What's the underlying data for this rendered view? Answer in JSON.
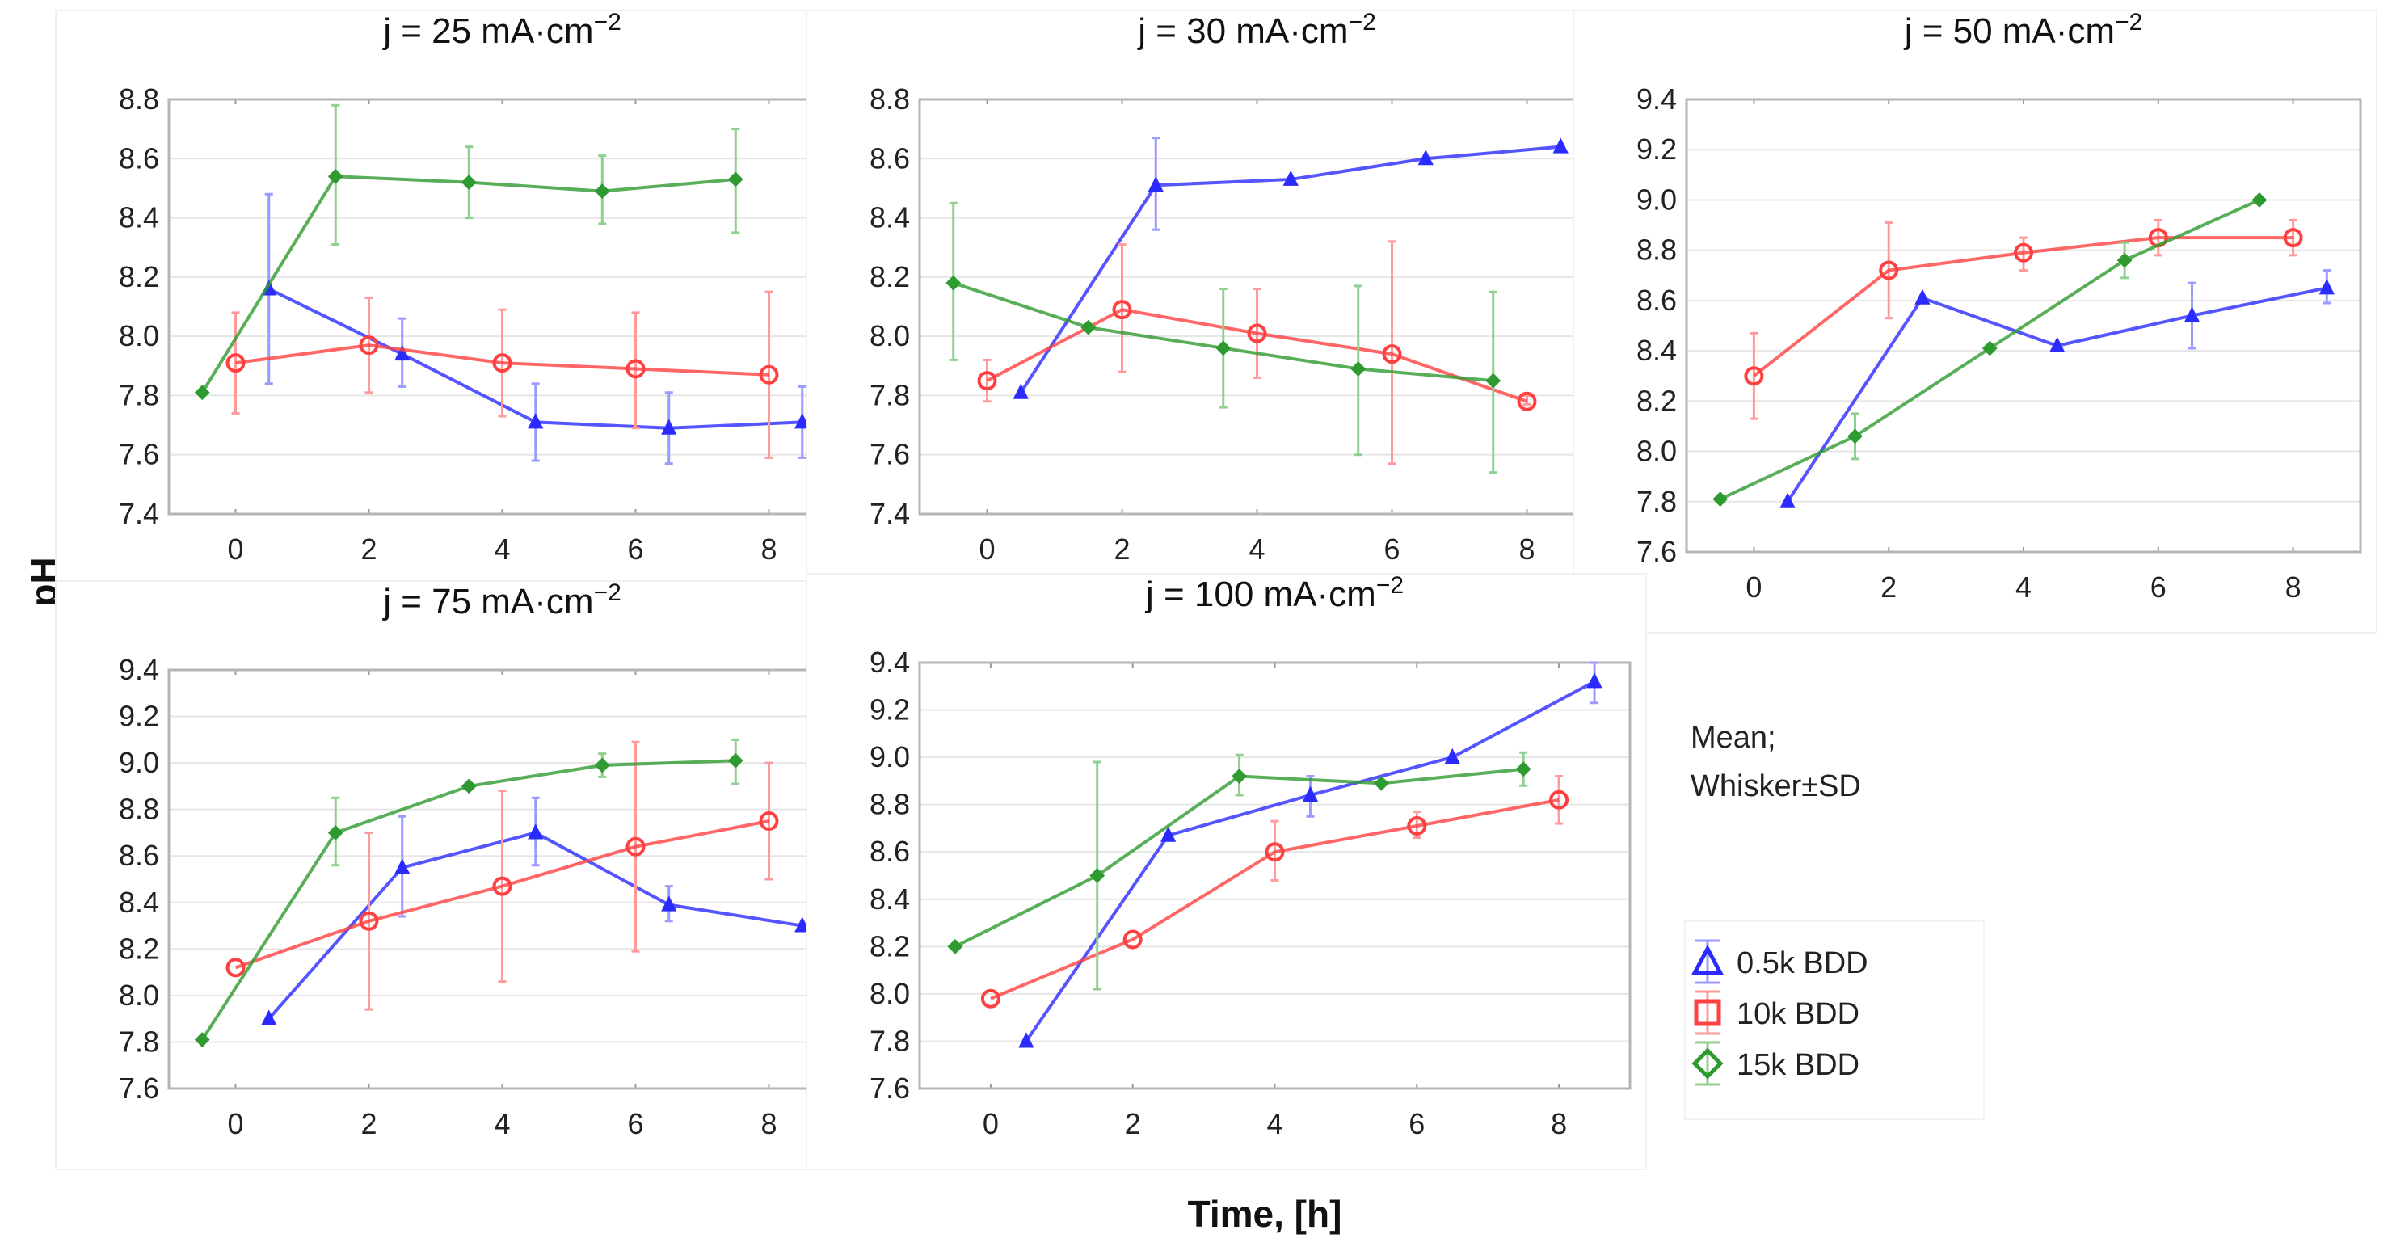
{
  "figure": {
    "ylabel": "pH",
    "xlabel": "Time, [h]",
    "note_line1": "Mean;",
    "note_line2": "Whisker±SD",
    "legend": [
      {
        "name": "0.5k BDD",
        "color": "#2b2bff",
        "marker": "triangle"
      },
      {
        "name": "10k BDD",
        "color": "#ff4040",
        "marker": "square"
      },
      {
        "name": "15k BDD",
        "color": "#2f9a2f",
        "marker": "diamond"
      }
    ]
  },
  "chart_data": [
    {
      "type": "line",
      "title_main": "j = 25 mA·cm",
      "title_sup": "−2",
      "xlim": [
        -1,
        9
      ],
      "ylim": [
        7.4,
        8.8
      ],
      "xticks": [
        "0",
        "2",
        "4",
        "6",
        "8"
      ],
      "yticks": [
        "7.4",
        "7.6",
        "7.8",
        "8.0",
        "8.2",
        "8.4",
        "8.6",
        "8.8"
      ],
      "grid": true,
      "series": [
        {
          "name": "0.5k BDD",
          "x": [
            0.5,
            2.5,
            4.5,
            6.5,
            8.5
          ],
          "y": [
            8.16,
            7.94,
            7.71,
            7.69,
            7.71
          ],
          "err": [
            [
              7.84,
              8.48
            ],
            [
              7.83,
              8.06
            ],
            [
              7.58,
              7.84
            ],
            [
              7.57,
              7.81
            ],
            [
              7.59,
              7.83
            ]
          ]
        },
        {
          "name": "10k BDD",
          "x": [
            0,
            2,
            4,
            6,
            8
          ],
          "y": [
            7.91,
            7.97,
            7.91,
            7.89,
            7.87
          ],
          "err": [
            [
              7.74,
              8.08
            ],
            [
              7.81,
              8.13
            ],
            [
              7.73,
              8.09
            ],
            [
              7.69,
              8.08
            ],
            [
              7.59,
              8.15
            ]
          ]
        },
        {
          "name": "15k BDD",
          "x": [
            -0.5,
            1.5,
            3.5,
            5.5,
            7.5
          ],
          "y": [
            7.81,
            8.54,
            8.52,
            8.49,
            8.53
          ],
          "err": [
            null,
            [
              8.31,
              8.78
            ],
            [
              8.4,
              8.64
            ],
            [
              8.38,
              8.61
            ],
            [
              8.35,
              8.7
            ]
          ]
        }
      ]
    },
    {
      "type": "line",
      "title_main": "j = 30 mA·cm",
      "title_sup": "−2",
      "xlim": [
        -1,
        9
      ],
      "ylim": [
        7.4,
        8.8
      ],
      "xticks": [
        "0",
        "2",
        "4",
        "6",
        "8"
      ],
      "yticks": [
        "7.4",
        "7.6",
        "7.8",
        "8.0",
        "8.2",
        "8.4",
        "8.6",
        "8.8"
      ],
      "grid": true,
      "series": [
        {
          "name": "0.5k BDD",
          "x": [
            0.5,
            2.5,
            4.5,
            6.5,
            8.5
          ],
          "y": [
            7.81,
            8.51,
            8.53,
            8.6,
            8.64
          ],
          "err": [
            null,
            [
              8.36,
              8.67
            ],
            null,
            null,
            null
          ]
        },
        {
          "name": "10k BDD",
          "x": [
            0,
            2,
            4,
            6,
            8
          ],
          "y": [
            7.85,
            8.09,
            8.01,
            7.94,
            7.78
          ],
          "err": [
            [
              7.78,
              7.92
            ],
            [
              7.88,
              8.31
            ],
            [
              7.86,
              8.16
            ],
            [
              7.57,
              8.32
            ],
            [
              7.77,
              7.8
            ]
          ]
        },
        {
          "name": "15k BDD",
          "x": [
            -0.5,
            1.5,
            3.5,
            5.5,
            7.5
          ],
          "y": [
            8.18,
            8.03,
            7.96,
            7.89,
            7.85
          ],
          "err": [
            [
              7.92,
              8.45
            ],
            null,
            [
              7.76,
              8.16
            ],
            [
              7.6,
              8.17
            ],
            [
              7.54,
              8.15
            ]
          ]
        }
      ]
    },
    {
      "type": "line",
      "title_main": "j = 50 mA·cm",
      "title_sup": "−2",
      "xlim": [
        -1,
        9
      ],
      "ylim": [
        7.6,
        9.4
      ],
      "xticks": [
        "0",
        "2",
        "4",
        "6",
        "8"
      ],
      "yticks": [
        "7.6",
        "7.8",
        "8.0",
        "8.2",
        "8.4",
        "8.6",
        "8.8",
        "9.0",
        "9.2",
        "9.4"
      ],
      "grid": true,
      "series": [
        {
          "name": "0.5k BDD",
          "x": [
            0.5,
            2.5,
            4.5,
            6.5,
            8.5
          ],
          "y": [
            7.8,
            8.61,
            8.42,
            8.54,
            8.65
          ],
          "err": [
            null,
            null,
            null,
            [
              8.41,
              8.67
            ],
            [
              8.59,
              8.72
            ]
          ]
        },
        {
          "name": "10k BDD",
          "x": [
            0,
            2,
            4,
            6,
            8
          ],
          "y": [
            8.3,
            8.72,
            8.79,
            8.85,
            8.85
          ],
          "err": [
            [
              8.13,
              8.47
            ],
            [
              8.53,
              8.91
            ],
            [
              8.72,
              8.85
            ],
            [
              8.78,
              8.92
            ],
            [
              8.78,
              8.92
            ]
          ]
        },
        {
          "name": "15k BDD",
          "x": [
            -0.5,
            1.5,
            3.5,
            5.5,
            7.5
          ],
          "y": [
            7.81,
            8.06,
            8.41,
            8.76,
            9.0
          ],
          "err": [
            null,
            [
              7.97,
              8.15
            ],
            null,
            [
              8.69,
              8.83
            ],
            null
          ]
        }
      ]
    },
    {
      "type": "line",
      "title_main": "j = 75 mA·cm",
      "title_sup": "−2",
      "xlim": [
        -1,
        9
      ],
      "ylim": [
        7.6,
        9.4
      ],
      "xticks": [
        "0",
        "2",
        "4",
        "6",
        "8"
      ],
      "yticks": [
        "7.6",
        "7.8",
        "8.0",
        "8.2",
        "8.4",
        "8.6",
        "8.8",
        "9.0",
        "9.2",
        "9.4"
      ],
      "grid": true,
      "series": [
        {
          "name": "0.5k BDD",
          "x": [
            0.5,
            2.5,
            4.5,
            6.5,
            8.5
          ],
          "y": [
            7.9,
            8.55,
            8.7,
            8.39,
            8.3
          ],
          "err": [
            null,
            [
              8.34,
              8.77
            ],
            [
              8.56,
              8.85
            ],
            [
              8.32,
              8.47
            ],
            null
          ]
        },
        {
          "name": "10k BDD",
          "x": [
            0,
            2,
            4,
            6,
            8
          ],
          "y": [
            8.12,
            8.32,
            8.47,
            8.64,
            8.75
          ],
          "err": [
            null,
            [
              7.94,
              8.7
            ],
            [
              8.06,
              8.88
            ],
            [
              8.19,
              9.09
            ],
            [
              8.5,
              9.0
            ]
          ]
        },
        {
          "name": "15k BDD",
          "x": [
            -0.5,
            1.5,
            3.5,
            5.5,
            7.5
          ],
          "y": [
            7.81,
            8.7,
            8.9,
            8.99,
            9.01
          ],
          "err": [
            null,
            [
              8.56,
              8.85
            ],
            null,
            [
              8.94,
              9.04
            ],
            [
              8.91,
              9.1
            ]
          ]
        }
      ]
    },
    {
      "type": "line",
      "title_main": "j = 100 mA·cm",
      "title_sup": "−2",
      "xlim": [
        -1,
        9
      ],
      "ylim": [
        7.6,
        9.4
      ],
      "xticks": [
        "0",
        "2",
        "4",
        "6",
        "8"
      ],
      "yticks": [
        "7.6",
        "7.8",
        "8.0",
        "8.2",
        "8.4",
        "8.6",
        "8.8",
        "9.0",
        "9.2",
        "9.4"
      ],
      "grid": true,
      "series": [
        {
          "name": "0.5k BDD",
          "x": [
            0.5,
            2.5,
            4.5,
            6.5,
            8.5
          ],
          "y": [
            7.8,
            8.67,
            8.84,
            9.0,
            9.32
          ],
          "err": [
            null,
            null,
            [
              8.75,
              8.92
            ],
            null,
            [
              9.23,
              9.4
            ]
          ]
        },
        {
          "name": "10k BDD",
          "x": [
            0,
            2,
            4,
            6,
            8
          ],
          "y": [
            7.98,
            8.23,
            8.6,
            8.71,
            8.82
          ],
          "err": [
            null,
            null,
            [
              8.48,
              8.73
            ],
            [
              8.66,
              8.77
            ],
            [
              8.72,
              8.92
            ]
          ]
        },
        {
          "name": "15k BDD",
          "x": [
            -0.5,
            1.5,
            3.5,
            5.5,
            7.5
          ],
          "y": [
            8.2,
            8.5,
            8.92,
            8.89,
            8.95
          ],
          "err": [
            null,
            [
              8.02,
              8.98
            ],
            [
              8.84,
              9.01
            ],
            null,
            [
              8.88,
              9.02
            ]
          ]
        }
      ]
    }
  ]
}
